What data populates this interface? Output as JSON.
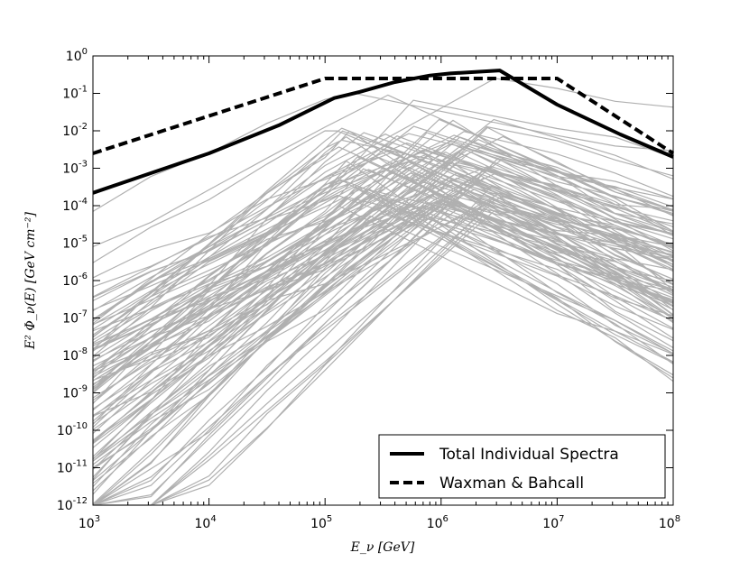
{
  "chart_data": {
    "type": "line",
    "x_scale": "log",
    "y_scale": "log",
    "xlim": [
      1000,
      100000000
    ],
    "ylim": [
      1e-12,
      1
    ],
    "xlabel": "E_ν [GeV]",
    "ylabel": "E² Φ_ν(E) [GeV cm⁻²]",
    "x_ticks": [
      {
        "base": "10",
        "exp": "3"
      },
      {
        "base": "10",
        "exp": "4"
      },
      {
        "base": "10",
        "exp": "5"
      },
      {
        "base": "10",
        "exp": "6"
      },
      {
        "base": "10",
        "exp": "7"
      },
      {
        "base": "10",
        "exp": "8"
      }
    ],
    "y_ticks": [
      {
        "base": "10",
        "exp": "-12"
      },
      {
        "base": "10",
        "exp": "-11"
      },
      {
        "base": "10",
        "exp": "-10"
      },
      {
        "base": "10",
        "exp": "-9"
      },
      {
        "base": "10",
        "exp": "-8"
      },
      {
        "base": "10",
        "exp": "-7"
      },
      {
        "base": "10",
        "exp": "-6"
      },
      {
        "base": "10",
        "exp": "-5"
      },
      {
        "base": "10",
        "exp": "-4"
      },
      {
        "base": "10",
        "exp": "-3"
      },
      {
        "base": "10",
        "exp": "-2"
      },
      {
        "base": "10",
        "exp": "-1"
      },
      {
        "base": "10",
        "exp": "0"
      }
    ],
    "legend": {
      "position": "lower-right",
      "entries": [
        {
          "label": "Total Individual Spectra",
          "style": "solid"
        },
        {
          "label": "Waxman & Bahcall",
          "style": "dashed"
        }
      ]
    },
    "colors": {
      "individual": "#b0b0b0",
      "total": "#000000",
      "wb": "#000000"
    },
    "series": [
      {
        "name": "Total Individual Spectra",
        "style": "solid",
        "x": [
          1000,
          3000,
          10000,
          40000,
          120000,
          200000,
          400000,
          800000,
          1200000,
          3200000,
          10000000,
          35000000,
          100000000
        ],
        "y": [
          0.00022,
          0.0007,
          0.0025,
          0.014,
          0.075,
          0.11,
          0.2,
          0.3,
          0.34,
          0.41,
          0.05,
          0.008,
          0.002
        ]
      },
      {
        "name": "Waxman & Bahcall",
        "style": "dashed",
        "x": [
          1000,
          100000,
          10000000,
          100000000
        ],
        "y": [
          0.0025,
          0.25,
          0.25,
          0.0025
        ]
      }
    ]
  }
}
